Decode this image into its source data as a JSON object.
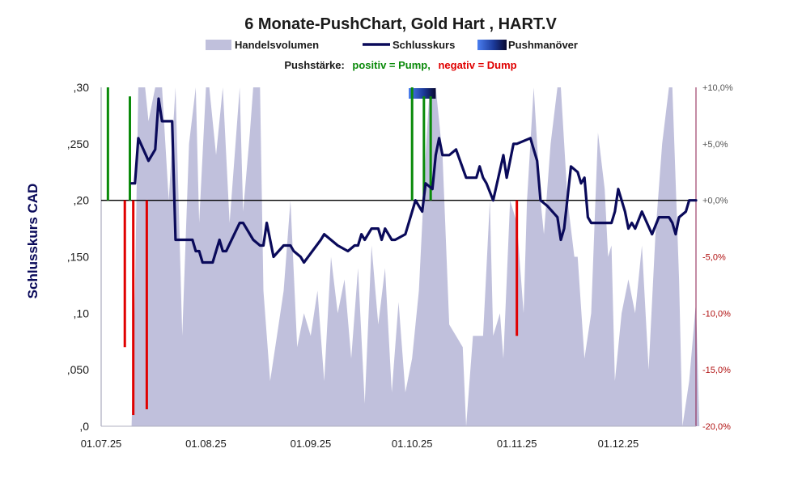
{
  "chart_data": {
    "type": "combo",
    "title": "6 Monate-PushChart, Gold Hart , HART.V",
    "legend": [
      {
        "label": "Handelsvolumen",
        "color": "#c0c0dc"
      },
      {
        "label": "Schlusskurs",
        "color": "#0a0a5a"
      },
      {
        "label": "Pushmanöver",
        "color": "#3a6ae8"
      }
    ],
    "push_legend": {
      "prefix": "Pushstärke:",
      "positive": "positiv = Pump,",
      "negative": "negativ = Dump",
      "positive_color": "#0a8a0a",
      "negative_color": "#e00000"
    },
    "ylabel": "Schlusskurs CAD",
    "ylim": [
      0,
      0.3
    ],
    "y2lim": [
      -20,
      10
    ],
    "xlim": [
      0,
      176
    ],
    "yticks": [
      {
        "v": 0,
        "label": ",0"
      },
      {
        "v": 0.05,
        "label": ",050"
      },
      {
        "v": 0.1,
        "label": ",10"
      },
      {
        "v": 0.15,
        "label": ",150"
      },
      {
        "v": 0.2,
        "label": ",20"
      },
      {
        "v": 0.25,
        "label": ",250"
      },
      {
        "v": 0.3,
        "label": ",30"
      }
    ],
    "y2ticks": [
      {
        "v": 10,
        "label": "+10,0%"
      },
      {
        "v": 5,
        "label": "+5,0%"
      },
      {
        "v": 0,
        "label": "+0,0%"
      },
      {
        "v": -5,
        "label": "-5,0%"
      },
      {
        "v": -10,
        "label": "-10,0%"
      },
      {
        "v": -15,
        "label": "-15,0%"
      },
      {
        "v": -20,
        "label": "-20,0%"
      }
    ],
    "xticks": [
      {
        "d": 0,
        "label": "01.07.25"
      },
      {
        "d": 31,
        "label": "01.08.25"
      },
      {
        "d": 62,
        "label": "01.09.25"
      },
      {
        "d": 92,
        "label": "01.10.25"
      },
      {
        "d": 123,
        "label": "01.11.25"
      },
      {
        "d": 153,
        "label": "01.12.25"
      }
    ],
    "price": [
      [
        9,
        0.215
      ],
      [
        10,
        0.215
      ],
      [
        11,
        0.255
      ],
      [
        14,
        0.235
      ],
      [
        16,
        0.245
      ],
      [
        17,
        0.29
      ],
      [
        18,
        0.27
      ],
      [
        21,
        0.27
      ],
      [
        22,
        0.165
      ],
      [
        27,
        0.165
      ],
      [
        28,
        0.155
      ],
      [
        29,
        0.155
      ],
      [
        30,
        0.145
      ],
      [
        33,
        0.145
      ],
      [
        35,
        0.165
      ],
      [
        36,
        0.155
      ],
      [
        37,
        0.155
      ],
      [
        41,
        0.18
      ],
      [
        42,
        0.18
      ],
      [
        45,
        0.165
      ],
      [
        47,
        0.16
      ],
      [
        48,
        0.16
      ],
      [
        49,
        0.18
      ],
      [
        51,
        0.15
      ],
      [
        54,
        0.16
      ],
      [
        56,
        0.16
      ],
      [
        57,
        0.155
      ],
      [
        59,
        0.15
      ],
      [
        60,
        0.145
      ],
      [
        65,
        0.165
      ],
      [
        66,
        0.17
      ],
      [
        70,
        0.16
      ],
      [
        73,
        0.155
      ],
      [
        75,
        0.16
      ],
      [
        76,
        0.16
      ],
      [
        77,
        0.17
      ],
      [
        78,
        0.165
      ],
      [
        80,
        0.175
      ],
      [
        82,
        0.175
      ],
      [
        83,
        0.165
      ],
      [
        84,
        0.175
      ],
      [
        86,
        0.165
      ],
      [
        87,
        0.165
      ],
      [
        90,
        0.17
      ],
      [
        93,
        0.2
      ],
      [
        95,
        0.19
      ],
      [
        96,
        0.215
      ],
      [
        98,
        0.21
      ],
      [
        99,
        0.24
      ],
      [
        100,
        0.255
      ],
      [
        101,
        0.24
      ],
      [
        103,
        0.24
      ],
      [
        105,
        0.245
      ],
      [
        108,
        0.22
      ],
      [
        111,
        0.22
      ],
      [
        112,
        0.23
      ],
      [
        113,
        0.22
      ],
      [
        114,
        0.215
      ],
      [
        116,
        0.2
      ],
      [
        119,
        0.24
      ],
      [
        120,
        0.22
      ],
      [
        122,
        0.25
      ],
      [
        123,
        0.25
      ],
      [
        127,
        0.255
      ],
      [
        128,
        0.245
      ],
      [
        129,
        0.235
      ],
      [
        130,
        0.2
      ],
      [
        132,
        0.195
      ],
      [
        135,
        0.185
      ],
      [
        136,
        0.165
      ],
      [
        137,
        0.175
      ],
      [
        139,
        0.23
      ],
      [
        141,
        0.225
      ],
      [
        142,
        0.215
      ],
      [
        143,
        0.22
      ],
      [
        144,
        0.185
      ],
      [
        145,
        0.18
      ],
      [
        147,
        0.18
      ],
      [
        149,
        0.18
      ],
      [
        151,
        0.18
      ],
      [
        152,
        0.19
      ],
      [
        153,
        0.21
      ],
      [
        155,
        0.19
      ],
      [
        156,
        0.175
      ],
      [
        157,
        0.18
      ],
      [
        158,
        0.175
      ],
      [
        160,
        0.19
      ],
      [
        163,
        0.17
      ],
      [
        165,
        0.185
      ],
      [
        167,
        0.185
      ],
      [
        168,
        0.185
      ],
      [
        169,
        0.18
      ],
      [
        170,
        0.17
      ],
      [
        171,
        0.185
      ],
      [
        173,
        0.19
      ],
      [
        174,
        0.2
      ],
      [
        176,
        0.2
      ]
    ],
    "volume": [
      [
        0,
        0
      ],
      [
        9,
        0
      ],
      [
        10,
        0.12
      ],
      [
        11,
        0.3
      ],
      [
        13,
        0.3
      ],
      [
        14,
        0.27
      ],
      [
        16,
        0.3
      ],
      [
        18,
        0.3
      ],
      [
        20,
        0.2
      ],
      [
        22,
        0.3
      ],
      [
        24,
        0.08
      ],
      [
        26,
        0.25
      ],
      [
        28,
        0.3
      ],
      [
        29,
        0.18
      ],
      [
        31,
        0.3
      ],
      [
        32,
        0.3
      ],
      [
        34,
        0.24
      ],
      [
        36,
        0.3
      ],
      [
        38,
        0.18
      ],
      [
        39,
        0.22
      ],
      [
        41,
        0.3
      ],
      [
        42,
        0.19
      ],
      [
        44,
        0.26
      ],
      [
        45,
        0.3
      ],
      [
        47,
        0.3
      ],
      [
        48,
        0.12
      ],
      [
        50,
        0.04
      ],
      [
        52,
        0.08
      ],
      [
        54,
        0.12
      ],
      [
        56,
        0.2
      ],
      [
        58,
        0.07
      ],
      [
        60,
        0.1
      ],
      [
        62,
        0.08
      ],
      [
        64,
        0.12
      ],
      [
        66,
        0.04
      ],
      [
        68,
        0.15
      ],
      [
        70,
        0.1
      ],
      [
        72,
        0.13
      ],
      [
        74,
        0.06
      ],
      [
        76,
        0.14
      ],
      [
        78,
        0.02
      ],
      [
        80,
        0.16
      ],
      [
        82,
        0.09
      ],
      [
        84,
        0.14
      ],
      [
        86,
        0.03
      ],
      [
        88,
        0.11
      ],
      [
        90,
        0.03
      ],
      [
        92,
        0.06
      ],
      [
        94,
        0.12
      ],
      [
        96,
        0.24
      ],
      [
        97,
        0.29
      ],
      [
        99,
        0.3
      ],
      [
        101,
        0.24
      ],
      [
        103,
        0.09
      ],
      [
        105,
        0.08
      ],
      [
        107,
        0.07
      ],
      [
        108,
        0.0
      ],
      [
        110,
        0.08
      ],
      [
        112,
        0.08
      ],
      [
        113,
        0.08
      ],
      [
        115,
        0.2
      ],
      [
        116,
        0.08
      ],
      [
        118,
        0.1
      ],
      [
        119,
        0.06
      ],
      [
        121,
        0.2
      ],
      [
        123,
        0.18
      ],
      [
        125,
        0.1
      ],
      [
        126,
        0.2
      ],
      [
        128,
        0.3
      ],
      [
        129,
        0.25
      ],
      [
        130,
        0.2
      ],
      [
        131,
        0.17
      ],
      [
        133,
        0.25
      ],
      [
        135,
        0.3
      ],
      [
        136,
        0.3
      ],
      [
        138,
        0.2
      ],
      [
        140,
        0.15
      ],
      [
        141,
        0.15
      ],
      [
        143,
        0.06
      ],
      [
        145,
        0.1
      ],
      [
        147,
        0.26
      ],
      [
        149,
        0.21
      ],
      [
        150,
        0.15
      ],
      [
        151,
        0.16
      ],
      [
        152,
        0.04
      ],
      [
        154,
        0.1
      ],
      [
        156,
        0.13
      ],
      [
        158,
        0.1
      ],
      [
        160,
        0.16
      ],
      [
        162,
        0.05
      ],
      [
        164,
        0.17
      ],
      [
        166,
        0.25
      ],
      [
        168,
        0.3
      ],
      [
        169,
        0.3
      ],
      [
        171,
        0.13
      ],
      [
        172,
        0.0
      ],
      [
        174,
        0.04
      ],
      [
        176,
        0.11
      ],
      [
        177,
        0.0
      ],
      [
        177,
        0
      ]
    ],
    "push_bars": [
      {
        "d": 2,
        "v": 10
      },
      {
        "d": 7,
        "v": -13
      },
      {
        "d": 8.5,
        "v": 9.2
      },
      {
        "d": 9.5,
        "v": -19
      },
      {
        "d": 13.5,
        "v": -18.5
      },
      {
        "d": 92,
        "v": 10
      },
      {
        "d": 95.5,
        "v": 9.2
      },
      {
        "d": 97.5,
        "v": 9.2
      },
      {
        "d": 123,
        "v": -12
      }
    ],
    "push_zone": {
      "d_start": 91,
      "d_end": 99
    }
  }
}
